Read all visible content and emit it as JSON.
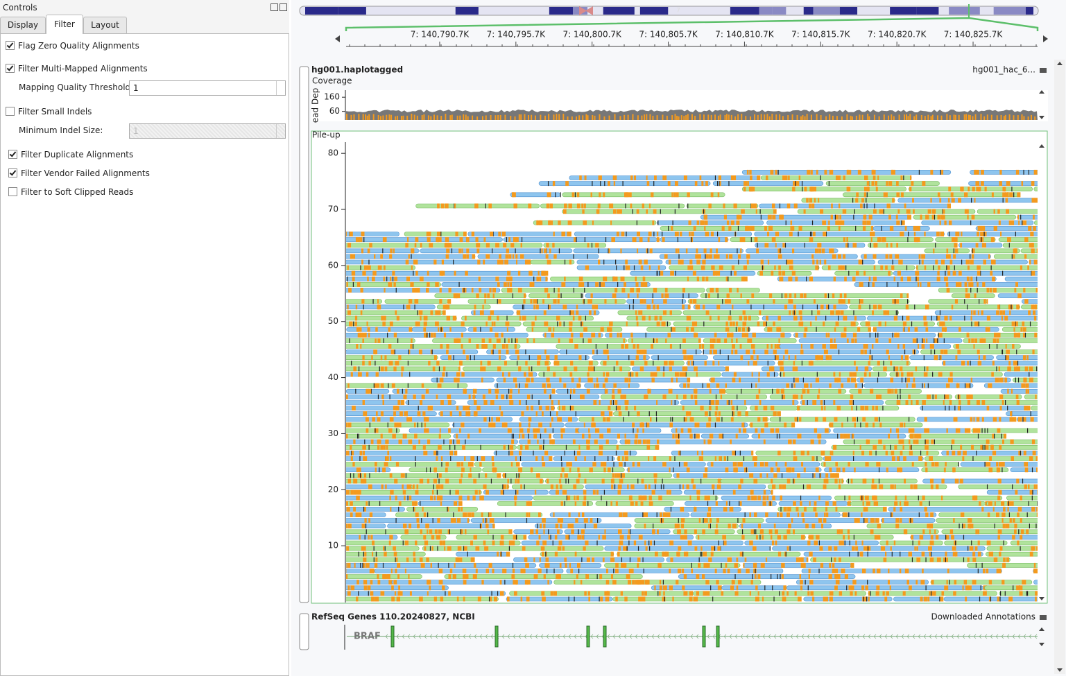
{
  "controls": {
    "title": "Controls",
    "tabs": [
      "Display",
      "Filter",
      "Layout"
    ],
    "active_tab": 1,
    "filters": [
      {
        "label": "Flag Zero Quality Alignments",
        "checked": true
      },
      {
        "label": "Filter Multi-Mapped Alignments",
        "checked": true
      },
      {
        "label": "Filter Small Indels",
        "checked": false
      },
      {
        "label": "Filter Duplicate Alignments",
        "checked": true
      },
      {
        "label": "Filter Vendor Failed Alignments",
        "checked": true
      },
      {
        "label": "Filter to Soft Clipped Reads",
        "checked": false
      }
    ],
    "mapping_quality": {
      "label": "Mapping Quality Threshold:",
      "value": 1
    },
    "min_indel": {
      "label": "Minimum Indel Size:",
      "value": 1,
      "disabled": true
    }
  },
  "ideogram": {
    "chromosome": "7"
  },
  "ruler": {
    "xlim": [
      140784558,
      140829931
    ],
    "xticks": [
      {
        "value": 140790700,
        "label": "7: 140,790.7K"
      },
      {
        "value": 140795700,
        "label": "7: 140,795.7K"
      },
      {
        "value": 140800700,
        "label": "7: 140,800.7K"
      },
      {
        "value": 140805700,
        "label": "7: 140,805.7K"
      },
      {
        "value": 140810700,
        "label": "7: 140,810.7K"
      },
      {
        "value": 140815700,
        "label": "7: 140,815.7K"
      },
      {
        "value": 140820700,
        "label": "7: 140,820.7K"
      },
      {
        "value": 140825700,
        "label": "7: 140,825.7K"
      }
    ]
  },
  "alignment_track": {
    "title": "hg001.haplotagged",
    "source": "hg001_hac_6...",
    "coverage": {
      "label": "Coverage",
      "axis_label": "ead Dep",
      "ylim": [
        0,
        200
      ],
      "yticks": [
        60,
        160
      ]
    },
    "pileup": {
      "label": "Pile-up",
      "ylim": [
        0,
        82
      ],
      "yticks": [
        10,
        20,
        30,
        40,
        50,
        60,
        70,
        80
      ]
    }
  },
  "gene_track": {
    "title": "RefSeq Genes 110.20240827, NCBI",
    "source": "Downloaded Annotations",
    "gene": "BRAF"
  }
}
